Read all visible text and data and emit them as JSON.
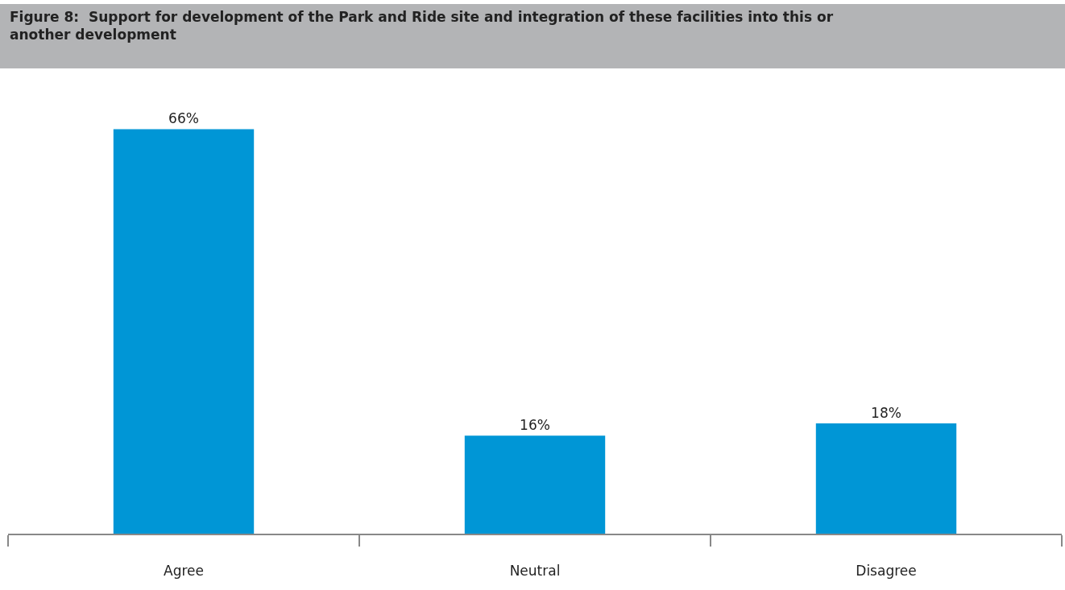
{
  "chart_data": {
    "type": "bar",
    "title": "Figure 8:  Support for development of the Park and Ride site and integration of these facilities into this or another development",
    "categories": [
      "Agree",
      "Neutral",
      "Disagree"
    ],
    "values": [
      66,
      16,
      18
    ],
    "value_labels": [
      "66%",
      "16%",
      "18%"
    ],
    "color": "#0096d6"
  }
}
